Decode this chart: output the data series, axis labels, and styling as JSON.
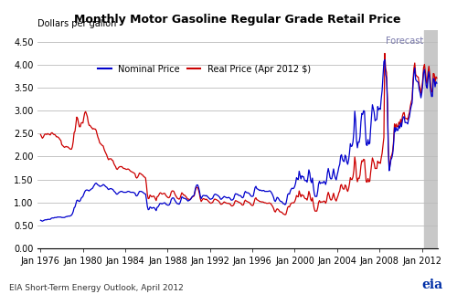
{
  "title": "Monthly Motor Gasoline Regular Grade Retail Price",
  "ylabel": "Dollars per gallon",
  "forecast_label": "Forecast",
  "legend_nominal": "Nominal Price",
  "legend_real": "Real Price (Apr 2012 $)",
  "footer": "EIA Short-Term Energy Outlook, April 2012",
  "nominal_color": "#0000CC",
  "real_color": "#CC0000",
  "forecast_color": "#C8C8C8",
  "forecast_start_year": 2012.25,
  "ylim": [
    0.0,
    4.75
  ],
  "yticks": [
    0.0,
    0.5,
    1.0,
    1.5,
    2.0,
    2.5,
    3.0,
    3.5,
    4.0,
    4.5
  ],
  "xtick_years": [
    1976,
    1980,
    1984,
    1988,
    1992,
    1996,
    2000,
    2004,
    2008,
    2012
  ],
  "xmin": 1975.75,
  "xmax": 2013.5
}
